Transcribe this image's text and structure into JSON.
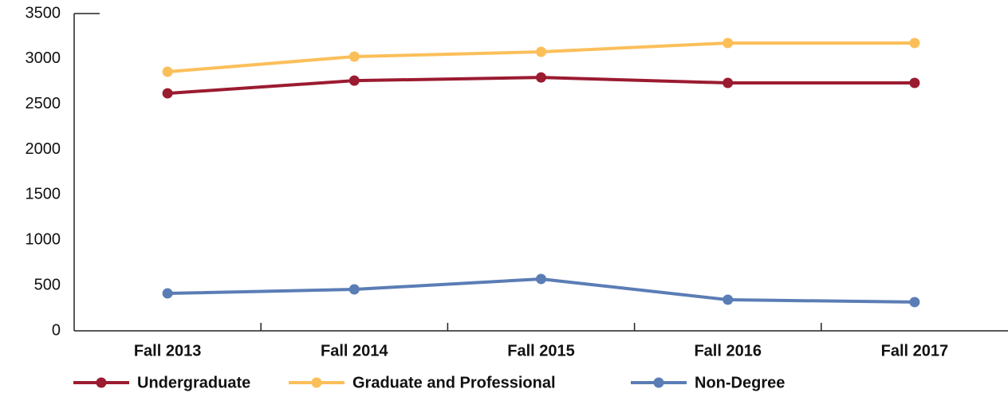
{
  "chart_data": {
    "type": "line",
    "categories": [
      "Fall 2013",
      "Fall 2014",
      "Fall 2015",
      "Fall 2016",
      "Fall 2017"
    ],
    "series": [
      {
        "name": "Undergraduate",
        "color": "#9b1b30",
        "values": [
          2620,
          2760,
          2795,
          2735,
          2735
        ]
      },
      {
        "name": "Graduate and Professional",
        "color": "#fbbf5a",
        "values": [
          2858,
          3025,
          3078,
          3175,
          3175
        ]
      },
      {
        "name": "Non-Degree",
        "color": "#5b7db5",
        "values": [
          413,
          457,
          572,
          343,
          317
        ]
      }
    ],
    "ylim": [
      0,
      3500
    ],
    "yticks": [
      0,
      500,
      1000,
      1500,
      2000,
      2500,
      3000,
      3500
    ],
    "legend": "bottom",
    "grid": false
  }
}
